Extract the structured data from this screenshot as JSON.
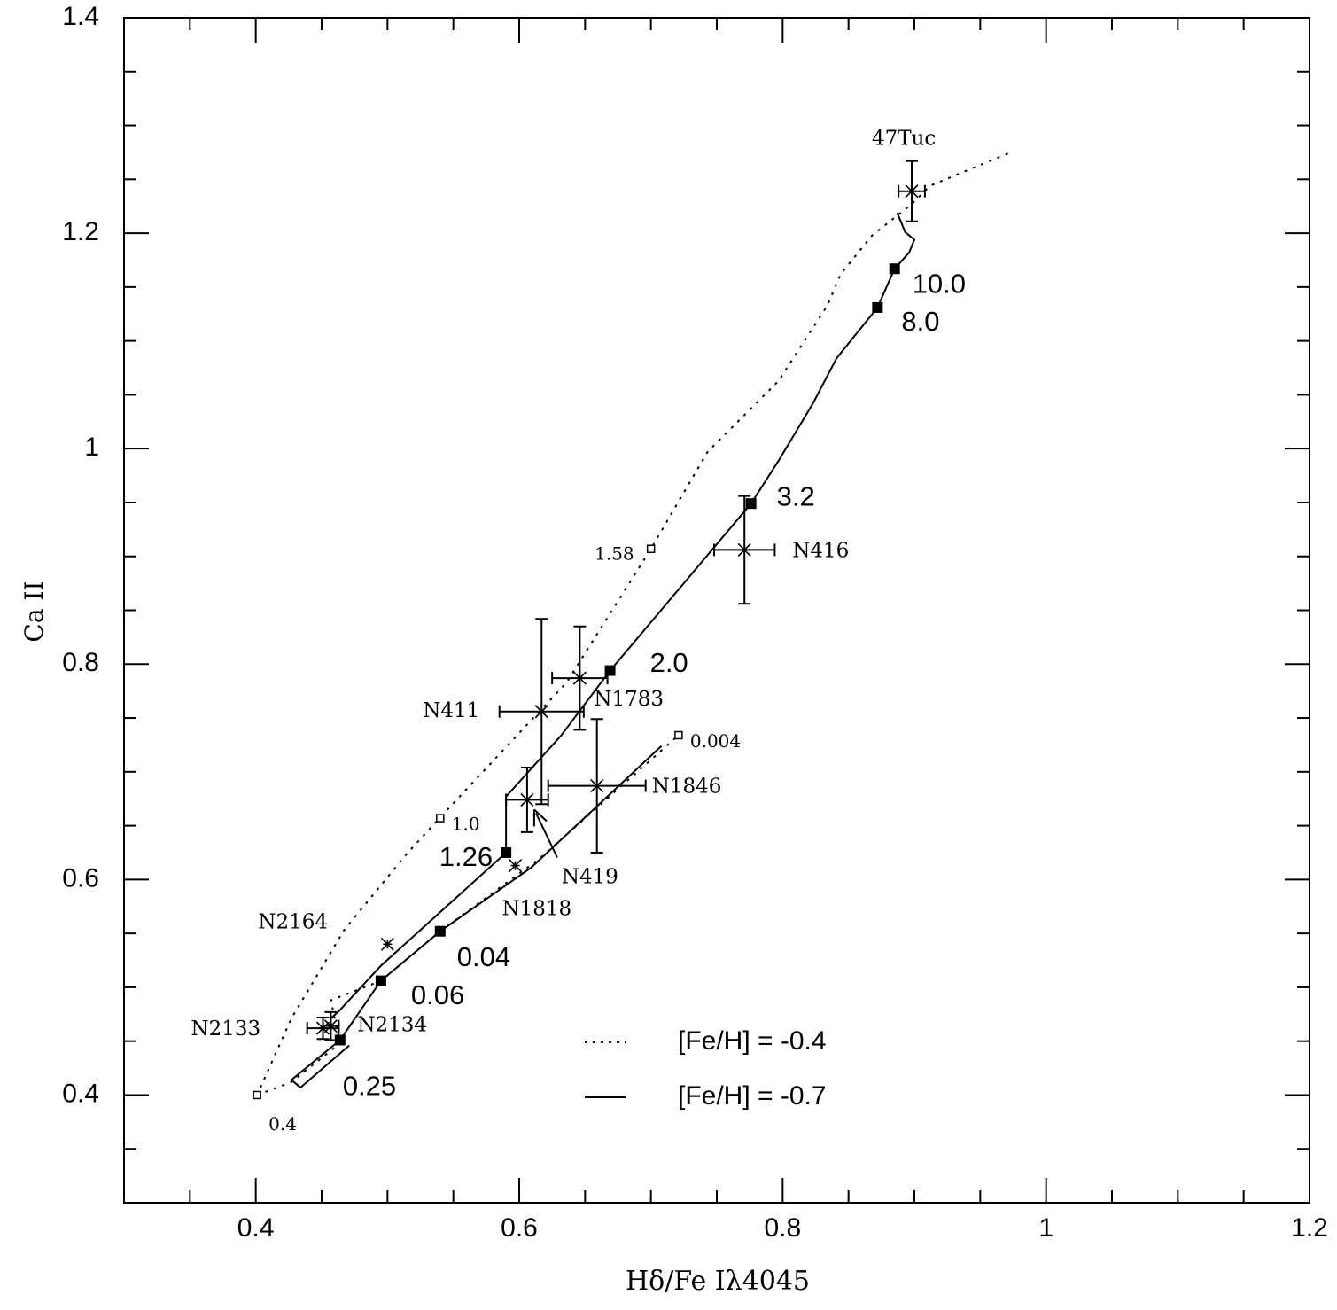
{
  "chart_data": {
    "type": "scatter",
    "title": "",
    "xlabel": "Hδ/Fe Iλ4045",
    "ylabel": "Ca II",
    "xlim": [
      0.3,
      1.2
    ],
    "ylim": [
      0.3,
      1.4
    ],
    "x_ticks": [
      "0.4",
      "0.6",
      "0.8",
      "1",
      "1.2"
    ],
    "y_ticks": [
      "0.4",
      "0.6",
      "0.8",
      "1",
      "1.2",
      "1.4"
    ],
    "x_tick_values": [
      0.4,
      0.6,
      0.8,
      1.0,
      1.2
    ],
    "y_tick_values": [
      0.4,
      0.6,
      0.8,
      1.0,
      1.2,
      1.4
    ],
    "minor_tick_step": 0.05,
    "grid": false,
    "legend_placement": "bottom-right",
    "legend": [
      {
        "label": "[Fe/H] = -0.4",
        "style": "dotted"
      },
      {
        "label": "[Fe/H] = -0.7",
        "style": "solid"
      }
    ],
    "models": [
      {
        "name": "[Fe/H] = -0.4",
        "style": "dotted",
        "segments": [
          [
            [
              0.971,
              1.274
            ],
            [
              0.912,
              1.244
            ],
            [
              0.898,
              1.227
            ],
            [
              0.868,
              1.198
            ],
            [
              0.844,
              1.162
            ],
            [
              0.834,
              1.133
            ],
            [
              0.797,
              1.063
            ],
            [
              0.743,
              0.997
            ],
            [
              0.7,
              0.907
            ],
            [
              0.636,
              0.783
            ],
            [
              0.541,
              0.659
            ],
            [
              0.514,
              0.623
            ],
            [
              0.467,
              0.553
            ],
            [
              0.427,
              0.471
            ],
            [
              0.401,
              0.4
            ]
          ],
          [
            [
              0.401,
              0.4
            ],
            [
              0.427,
              0.412
            ],
            [
              0.464,
              0.448
            ],
            [
              0.457,
              0.488
            ],
            [
              0.495,
              0.506
            ],
            [
              0.54,
              0.552
            ],
            [
              0.615,
              0.619
            ],
            [
              0.721,
              0.734
            ]
          ]
        ],
        "age_markers": [
          {
            "label": "1.58",
            "x": 0.7,
            "y": 0.907
          },
          {
            "label": "1.0",
            "x": 0.54,
            "y": 0.657
          },
          {
            "label": "0.4",
            "x": 0.401,
            "y": 0.4
          },
          {
            "label": "0.004",
            "x": 0.721,
            "y": 0.734
          }
        ]
      },
      {
        "name": "[Fe/H] = -0.7",
        "style": "solid",
        "segments": [
          [
            [
              0.887,
              1.219
            ],
            [
              0.893,
              1.201
            ],
            [
              0.9,
              1.194
            ],
            [
              0.896,
              1.182
            ],
            [
              0.885,
              1.167
            ],
            [
              0.872,
              1.131
            ],
            [
              0.841,
              1.084
            ],
            [
              0.823,
              1.042
            ],
            [
              0.797,
              0.989
            ],
            [
              0.776,
              0.949
            ],
            [
              0.727,
              0.878
            ],
            [
              0.669,
              0.794
            ],
            [
              0.632,
              0.734
            ],
            [
              0.59,
              0.677
            ],
            [
              0.59,
              0.625
            ],
            [
              0.495,
              0.52
            ],
            [
              0.464,
              0.479
            ],
            [
              0.457,
              0.471
            ]
          ],
          [
            [
              0.708,
              0.724
            ],
            [
              0.659,
              0.668
            ],
            [
              0.609,
              0.611
            ],
            [
              0.54,
              0.552
            ],
            [
              0.495,
              0.506
            ],
            [
              0.464,
              0.451
            ],
            [
              0.427,
              0.414
            ],
            [
              0.434,
              0.407
            ],
            [
              0.471,
              0.446
            ]
          ]
        ],
        "age_markers": [
          {
            "label": "10.0",
            "x": 0.885,
            "y": 1.167
          },
          {
            "label": "8.0",
            "x": 0.872,
            "y": 1.131
          },
          {
            "label": "3.2",
            "x": 0.776,
            "y": 0.949
          },
          {
            "label": "2.0",
            "x": 0.669,
            "y": 0.794
          },
          {
            "label": "1.26",
            "x": 0.59,
            "y": 0.625
          },
          {
            "label": "0.04",
            "x": 0.54,
            "y": 0.552
          },
          {
            "label": "0.06",
            "x": 0.495,
            "y": 0.506
          },
          {
            "label": "0.25",
            "x": 0.464,
            "y": 0.451
          }
        ]
      }
    ],
    "clusters": [
      {
        "label": "47Tuc",
        "x": 0.898,
        "y": 1.239,
        "xerr": 0.01,
        "yerr": 0.028
      },
      {
        "label": "N416",
        "x": 0.771,
        "y": 0.906,
        "xerr": 0.023,
        "yerr": 0.05
      },
      {
        "label": "N1783",
        "x": 0.646,
        "y": 0.787,
        "xerr": 0.021,
        "yerr": 0.048
      },
      {
        "label": "N411",
        "x": 0.617,
        "y": 0.756,
        "xerr": 0.032,
        "yerr": 0.086
      },
      {
        "label": "N1846",
        "x": 0.659,
        "y": 0.687,
        "xerr": 0.037,
        "yerr": 0.062
      },
      {
        "label": "N419",
        "x": 0.606,
        "y": 0.674,
        "xerr": 0.016,
        "yerr": 0.03
      },
      {
        "label": "N1818",
        "x": 0.597,
        "y": 0.613,
        "xerr": 0,
        "yerr": 0
      },
      {
        "label": "N2164",
        "x": 0.5,
        "y": 0.54,
        "xerr": 0,
        "yerr": 0
      },
      {
        "label": "N2133",
        "x": 0.451,
        "y": 0.462,
        "xerr": 0.012,
        "yerr": 0.01
      },
      {
        "label": "N2134",
        "x": 0.457,
        "y": 0.464,
        "xerr": 0.006,
        "yerr": 0.013
      }
    ]
  }
}
